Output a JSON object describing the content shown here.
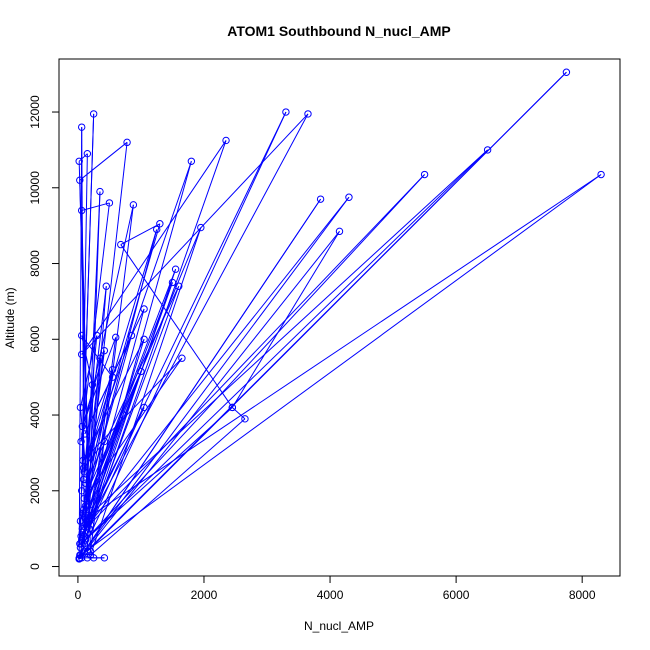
{
  "chart_data": {
    "type": "line",
    "title": "ATOM1 Southbound N_nucl_AMP",
    "xlabel": "N_nucl_AMP",
    "ylabel": "Altitude (m)",
    "xlim": [
      -300,
      8600
    ],
    "ylim": [
      -250,
      13400
    ],
    "xticks": [
      0,
      2000,
      4000,
      6000,
      8000
    ],
    "yticks": [
      0,
      2000,
      4000,
      6000,
      8000,
      10000,
      12000
    ],
    "grid": false,
    "legend": "none",
    "series_color": "#0000ff",
    "series": [
      {
        "points": [
          [
            20,
            200
          ],
          [
            60,
            11600
          ],
          [
            100,
            600
          ],
          [
            350,
            9900
          ],
          [
            150,
            400
          ],
          [
            7750,
            13050
          ],
          [
            20,
            210
          ],
          [
            3300,
            12000
          ],
          [
            50,
            800
          ],
          [
            3650,
            11950
          ],
          [
            60,
            5600
          ],
          [
            2350,
            11250
          ],
          [
            40,
            300
          ],
          [
            8300,
            10350
          ],
          [
            80,
            1200
          ],
          [
            6500,
            11000
          ],
          [
            120,
            700
          ],
          [
            5500,
            10350
          ],
          [
            70,
            900
          ],
          [
            4300,
            9750
          ],
          [
            100,
            400
          ],
          [
            3850,
            9700
          ],
          [
            30,
            220
          ],
          [
            4150,
            8850
          ],
          [
            2450,
            4200
          ],
          [
            2650,
            3900
          ],
          [
            200,
            300
          ],
          [
            1950,
            8950
          ],
          [
            90,
            1500
          ],
          [
            1550,
            7850
          ],
          [
            150,
            900
          ],
          [
            1600,
            7400
          ],
          [
            120,
            2200
          ],
          [
            1300,
            9050
          ],
          [
            680,
            8500
          ],
          [
            2450,
            4200
          ],
          [
            50,
            600
          ],
          [
            1050,
            6000
          ],
          [
            80,
            2800
          ],
          [
            1650,
            5500
          ],
          [
            100,
            1800
          ],
          [
            1000,
            5150
          ],
          [
            70,
            1000
          ],
          [
            1050,
            4200
          ],
          [
            40,
            500
          ],
          [
            720,
            4000
          ],
          [
            110,
            1300
          ],
          [
            780,
            11200
          ],
          [
            30,
            10200
          ],
          [
            200,
            400
          ],
          [
            880,
            9550
          ],
          [
            50,
            3300
          ],
          [
            500,
            9600
          ],
          [
            60,
            9400
          ],
          [
            180,
            1500
          ],
          [
            450,
            7400
          ],
          [
            90,
            2300
          ],
          [
            300,
            6100
          ],
          [
            40,
            4200
          ],
          [
            200,
            1100
          ],
          [
            600,
            6050
          ],
          [
            70,
            3700
          ],
          [
            420,
            5700
          ],
          [
            120,
            1600
          ],
          [
            550,
            5000
          ],
          [
            60,
            6100
          ],
          [
            230,
            4800
          ],
          [
            100,
            800
          ],
          [
            350,
            5500
          ],
          [
            30,
            600
          ],
          [
            250,
            11950
          ],
          [
            60,
            2000
          ],
          [
            150,
            10900
          ],
          [
            20,
            10700
          ],
          [
            180,
            1000
          ],
          [
            1800,
            10700
          ],
          [
            100,
            2500
          ],
          [
            1250,
            8900
          ],
          [
            80,
            1400
          ],
          [
            1500,
            7500
          ],
          [
            60,
            700
          ],
          [
            1050,
            6800
          ],
          [
            110,
            3500
          ],
          [
            850,
            6100
          ],
          [
            40,
            1200
          ],
          [
            550,
            5200
          ],
          [
            90,
            2600
          ],
          [
            420,
            3300
          ],
          [
            30,
            300
          ],
          [
            250,
            230
          ],
          [
            420,
            230
          ],
          [
            150,
            230
          ],
          [
            60,
            230
          ],
          [
            20,
            220
          ]
        ]
      }
    ]
  }
}
